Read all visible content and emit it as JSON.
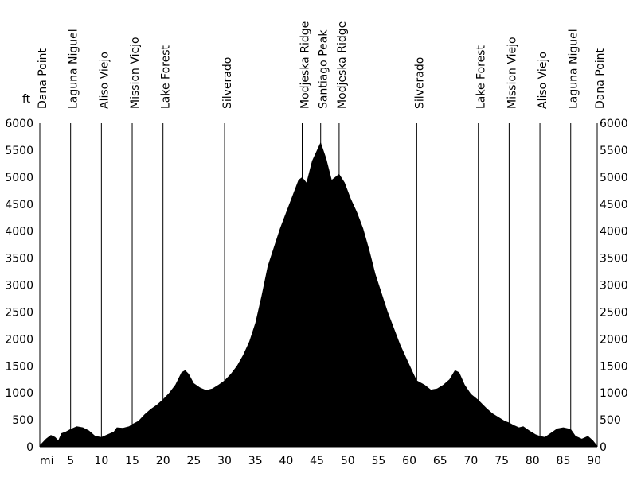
{
  "chart_data": {
    "type": "area",
    "y_unit": "ft",
    "x_unit": "mi",
    "xlim": [
      0,
      90.5
    ],
    "ylim": [
      0,
      6000
    ],
    "x_ticks": [
      5,
      10,
      15,
      20,
      25,
      30,
      35,
      40,
      45,
      50,
      55,
      60,
      65,
      70,
      75,
      80,
      85,
      90
    ],
    "y_ticks": [
      0,
      500,
      1000,
      1500,
      2000,
      2500,
      3000,
      3500,
      4000,
      4500,
      5000,
      5500,
      6000
    ],
    "fill_color": "#000000",
    "grid": false,
    "locations": [
      {
        "name": "Dana Point",
        "mi": 0,
        "line": false
      },
      {
        "name": "Laguna Niguel",
        "mi": 5,
        "line": true
      },
      {
        "name": "Aliso Viejo",
        "mi": 10,
        "line": true
      },
      {
        "name": "Mission Viejo",
        "mi": 15,
        "line": true
      },
      {
        "name": "Lake Forest",
        "mi": 20,
        "line": true
      },
      {
        "name": "Silverado",
        "mi": 30,
        "line": true
      },
      {
        "name": "Modjeska Ridge",
        "mi": 42.6,
        "line": true
      },
      {
        "name": "Santiago Peak",
        "mi": 45.6,
        "line": true
      },
      {
        "name": "Modjeska Ridge",
        "mi": 48.6,
        "line": true
      },
      {
        "name": "Silverado",
        "mi": 61.2,
        "line": true
      },
      {
        "name": "Lake Forest",
        "mi": 71.2,
        "line": true
      },
      {
        "name": "Mission Viejo",
        "mi": 76.2,
        "line": true
      },
      {
        "name": "Aliso Viejo",
        "mi": 81.2,
        "line": true
      },
      {
        "name": "Laguna Niguel",
        "mi": 86.2,
        "line": true
      },
      {
        "name": "Dana Point",
        "mi": 90.5,
        "line": false
      }
    ],
    "profile": [
      [
        0,
        30
      ],
      [
        1,
        150
      ],
      [
        1.8,
        220
      ],
      [
        2.5,
        180
      ],
      [
        3,
        120
      ],
      [
        3.5,
        250
      ],
      [
        4.2,
        280
      ],
      [
        5,
        330
      ],
      [
        6,
        380
      ],
      [
        7,
        360
      ],
      [
        8,
        300
      ],
      [
        9,
        200
      ],
      [
        10,
        180
      ],
      [
        11,
        230
      ],
      [
        12,
        280
      ],
      [
        12.5,
        360
      ],
      [
        13.5,
        350
      ],
      [
        14.5,
        380
      ],
      [
        15,
        420
      ],
      [
        16,
        480
      ],
      [
        17,
        600
      ],
      [
        18,
        700
      ],
      [
        19,
        780
      ],
      [
        20,
        880
      ],
      [
        21,
        1000
      ],
      [
        22,
        1150
      ],
      [
        23,
        1380
      ],
      [
        23.6,
        1420
      ],
      [
        24.2,
        1350
      ],
      [
        25,
        1180
      ],
      [
        26,
        1100
      ],
      [
        27,
        1050
      ],
      [
        28,
        1080
      ],
      [
        29,
        1150
      ],
      [
        30,
        1230
      ],
      [
        31,
        1350
      ],
      [
        32,
        1500
      ],
      [
        33,
        1700
      ],
      [
        34,
        1950
      ],
      [
        35,
        2300
      ],
      [
        36,
        2800
      ],
      [
        37,
        3350
      ],
      [
        38,
        3700
      ],
      [
        39,
        4050
      ],
      [
        40,
        4350
      ],
      [
        41,
        4650
      ],
      [
        42,
        4950
      ],
      [
        42.6,
        5000
      ],
      [
        43.3,
        4900
      ],
      [
        44.2,
        5300
      ],
      [
        45.6,
        5650
      ],
      [
        46.5,
        5350
      ],
      [
        47.4,
        4950
      ],
      [
        48.6,
        5060
      ],
      [
        49.5,
        4900
      ],
      [
        50.5,
        4600
      ],
      [
        51.5,
        4350
      ],
      [
        52.5,
        4050
      ],
      [
        53.5,
        3650
      ],
      [
        54.5,
        3200
      ],
      [
        55.5,
        2850
      ],
      [
        56.5,
        2500
      ],
      [
        57.5,
        2200
      ],
      [
        58.5,
        1900
      ],
      [
        59.5,
        1650
      ],
      [
        60.5,
        1400
      ],
      [
        61.2,
        1230
      ],
      [
        62.5,
        1150
      ],
      [
        63.5,
        1060
      ],
      [
        64.5,
        1080
      ],
      [
        65.5,
        1150
      ],
      [
        66.5,
        1250
      ],
      [
        67.4,
        1420
      ],
      [
        68.1,
        1380
      ],
      [
        69,
        1150
      ],
      [
        70,
        980
      ],
      [
        71.2,
        870
      ],
      [
        72.5,
        720
      ],
      [
        73.5,
        620
      ],
      [
        74.5,
        550
      ],
      [
        75.5,
        480
      ],
      [
        76.2,
        450
      ],
      [
        77,
        400
      ],
      [
        77.8,
        360
      ],
      [
        78.5,
        380
      ],
      [
        79.5,
        300
      ],
      [
        80.5,
        230
      ],
      [
        81.2,
        200
      ],
      [
        82,
        180
      ],
      [
        83,
        260
      ],
      [
        84,
        340
      ],
      [
        85,
        360
      ],
      [
        86.2,
        330
      ],
      [
        87,
        200
      ],
      [
        88,
        150
      ],
      [
        89,
        200
      ],
      [
        89.8,
        120
      ],
      [
        90.5,
        20
      ]
    ]
  }
}
